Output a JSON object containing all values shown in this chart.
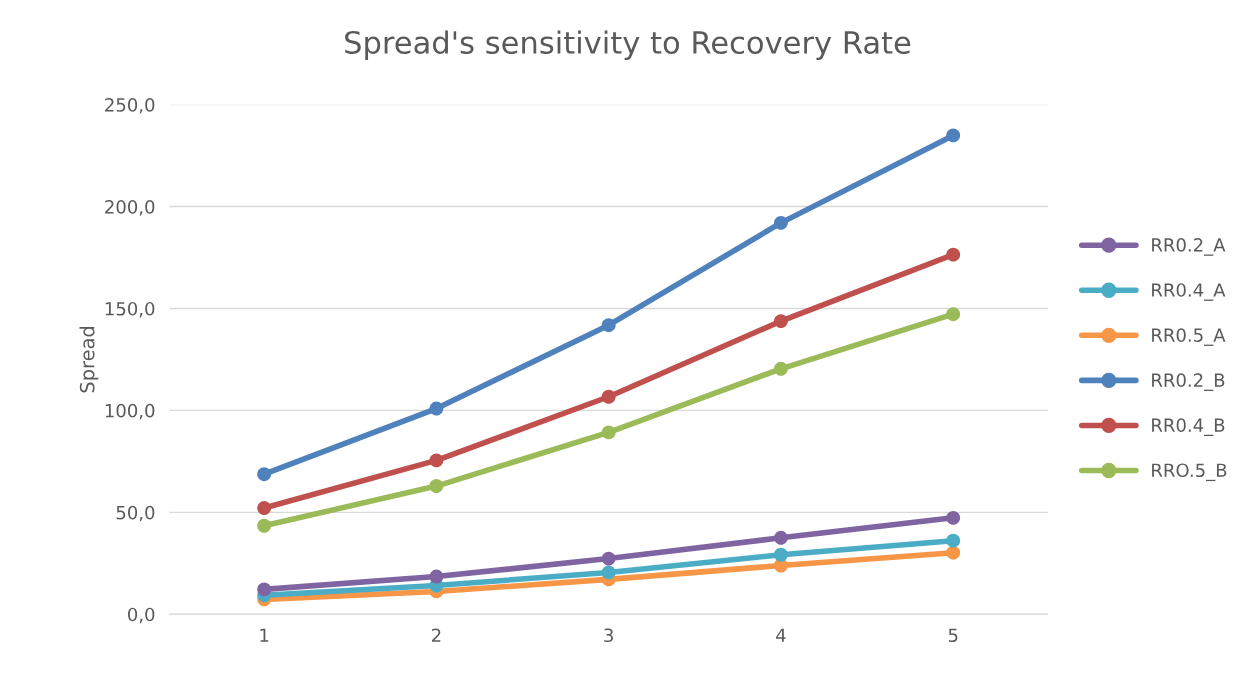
{
  "chart_data": {
    "type": "line",
    "title": "Spread's sensitivity to Recovery Rate",
    "ylabel": "Spread",
    "categories": [
      "1",
      "2",
      "3",
      "4",
      "5"
    ],
    "series": [
      {
        "name": "RR0.2_A",
        "color": "#8064a2",
        "values": [
          12.2,
          18.5,
          27.3,
          37.5,
          47.3
        ]
      },
      {
        "name": "RR0.4_A",
        "color": "#4bacc6",
        "values": [
          9.3,
          14.1,
          20.5,
          29.2,
          36.1
        ]
      },
      {
        "name": "RR0.5_A",
        "color": "#f79646",
        "values": [
          7.3,
          11.2,
          17.1,
          23.9,
          30.2
        ]
      },
      {
        "name": "RR0.2_B",
        "color": "#4f81bd",
        "values": [
          68.7,
          100.9,
          141.8,
          192.0,
          234.9
        ]
      },
      {
        "name": "RR0.4_B",
        "color": "#c0504d",
        "values": [
          52.1,
          75.5,
          106.7,
          143.8,
          176.4
        ]
      },
      {
        "name": "RRO.5_B",
        "color": "#9bbb59",
        "values": [
          43.4,
          62.9,
          89.2,
          120.4,
          147.2
        ]
      }
    ],
    "ylim": [
      0,
      250
    ],
    "yticks": [
      {
        "value": 0,
        "label": "0,0"
      },
      {
        "value": 50,
        "label": "50,0"
      },
      {
        "value": 100,
        "label": "100,0"
      },
      {
        "value": 150,
        "label": "150,0"
      },
      {
        "value": 200,
        "label": "200,0"
      },
      {
        "value": 250,
        "label": "250,0"
      }
    ],
    "grid": "y",
    "legend": "right",
    "marker": "circle",
    "line_style": "solid"
  }
}
